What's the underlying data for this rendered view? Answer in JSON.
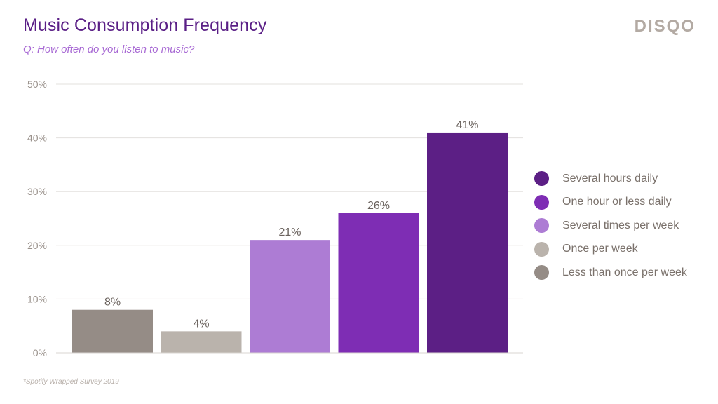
{
  "header": {
    "title": "Music Consumption Frequency",
    "subtitle": "Q: How often do you listen to music?",
    "brand": "DISQO"
  },
  "footer": {
    "source": "*Spotify Wrapped Survey 2019"
  },
  "chart_data": {
    "type": "bar",
    "title": "Music Consumption Frequency",
    "subtitle": "Q: How often do you listen to music?",
    "categories": [
      "Less than once per week",
      "Once per week",
      "Several times per week",
      "One hour or less daily",
      "Several hours daily"
    ],
    "values": [
      8,
      4,
      21,
      26,
      41
    ],
    "value_labels": [
      "8%",
      "4%",
      "21%",
      "26%",
      "41%"
    ],
    "colors": [
      "#958c86",
      "#bab3ac",
      "#ad7cd4",
      "#7e2db4",
      "#5c1f85"
    ],
    "ylim": [
      0,
      50
    ],
    "yticks": [
      0,
      10,
      20,
      30,
      40,
      50
    ],
    "ytick_labels": [
      "0%",
      "10%",
      "20%",
      "30%",
      "40%",
      "50%"
    ],
    "grid": true,
    "legend_position": "right",
    "legend": [
      {
        "label": "Several hours daily",
        "color": "#5c1f85"
      },
      {
        "label": "One hour or less daily",
        "color": "#7e2db4"
      },
      {
        "label": "Several times per week",
        "color": "#ad7cd4"
      },
      {
        "label": "Once per week",
        "color": "#bab3ac"
      },
      {
        "label": "Less than once per week",
        "color": "#958c86"
      }
    ]
  }
}
